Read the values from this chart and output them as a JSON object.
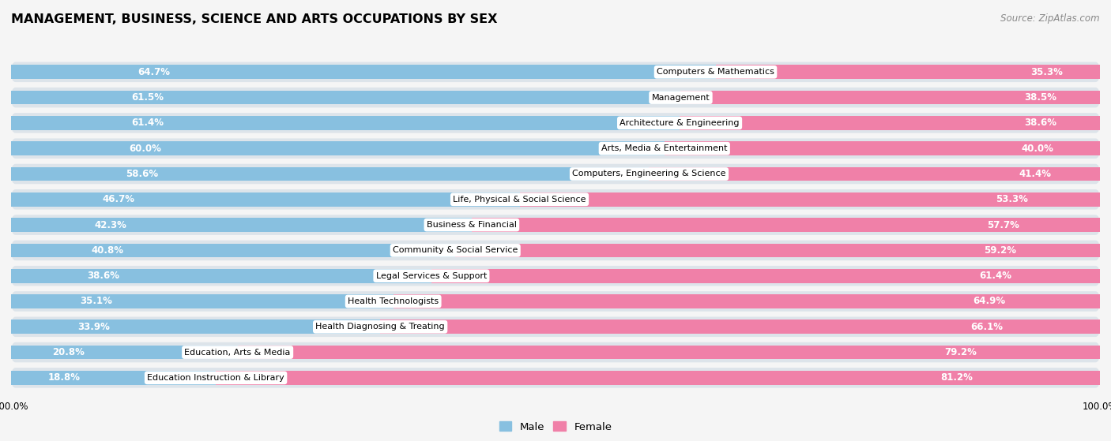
{
  "title": "MANAGEMENT, BUSINESS, SCIENCE AND ARTS OCCUPATIONS BY SEX",
  "source": "Source: ZipAtlas.com",
  "categories": [
    "Computers & Mathematics",
    "Management",
    "Architecture & Engineering",
    "Arts, Media & Entertainment",
    "Computers, Engineering & Science",
    "Life, Physical & Social Science",
    "Business & Financial",
    "Community & Social Service",
    "Legal Services & Support",
    "Health Technologists",
    "Health Diagnosing & Treating",
    "Education, Arts & Media",
    "Education Instruction & Library"
  ],
  "male_pct": [
    64.7,
    61.5,
    61.4,
    60.0,
    58.6,
    46.7,
    42.3,
    40.8,
    38.6,
    35.1,
    33.9,
    20.8,
    18.8
  ],
  "female_pct": [
    35.3,
    38.5,
    38.6,
    40.0,
    41.4,
    53.3,
    57.7,
    59.2,
    61.4,
    64.9,
    66.1,
    79.2,
    81.2
  ],
  "male_color": "#88c0e0",
  "female_color": "#f080a8",
  "row_bg_color": "#dde4ea",
  "bar_bg_color": "#ffffff",
  "fig_bg_color": "#f5f5f5",
  "title_fontsize": 11.5,
  "label_fontsize": 8.5,
  "source_fontsize": 8.5,
  "legend_fontsize": 9.5,
  "cat_fontsize": 8.0
}
